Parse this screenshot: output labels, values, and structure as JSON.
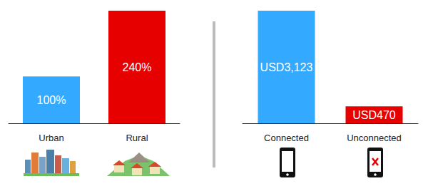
{
  "chart_data": [
    {
      "type": "bar",
      "categories": [
        "Urban",
        "Rural"
      ],
      "values": [
        100,
        240
      ],
      "value_labels": [
        "100%",
        "240%"
      ],
      "colors": [
        "#33aaff",
        "#e60000"
      ],
      "ylim": [
        0,
        240
      ],
      "grid": false,
      "data_labels": true,
      "tick_labels": "x"
    },
    {
      "type": "bar",
      "categories": [
        "Connected",
        "Unconnected"
      ],
      "values": [
        3123,
        470
      ],
      "value_labels": [
        "USD3,123",
        "USD470"
      ],
      "colors": [
        "#33aaff",
        "#e60000"
      ],
      "ylim": [
        0,
        3123
      ],
      "grid": false,
      "data_labels": true,
      "tick_labels": "x"
    }
  ]
}
